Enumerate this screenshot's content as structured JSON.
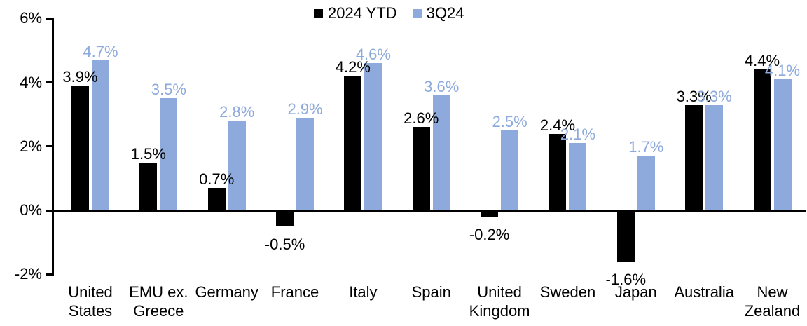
{
  "chart_data": {
    "type": "bar",
    "title": "",
    "xlabel": "",
    "ylabel": "",
    "value_suffix": "%",
    "grid": false,
    "legend_position": "top-center",
    "categories": [
      "United States",
      "EMU ex. Greece",
      "Germany",
      "France",
      "Italy",
      "Spain",
      "United Kingdom",
      "Sweden",
      "Japan",
      "Australia",
      "New Zealand"
    ],
    "series": [
      {
        "name": "2024 YTD",
        "color": "#000000",
        "values": [
          3.9,
          1.5,
          0.7,
          -0.5,
          4.2,
          2.6,
          -0.2,
          2.4,
          -1.6,
          3.3,
          4.4
        ],
        "labels": [
          "3.9%",
          "1.5%",
          "0.7%",
          "-0.5%",
          "4.2%",
          "2.6%",
          "-0.2%",
          "2.4%",
          "-1.6%",
          "3.3%",
          "4.4%"
        ]
      },
      {
        "name": "3Q24",
        "color": "#8EAADC",
        "values": [
          4.7,
          3.5,
          2.8,
          2.9,
          4.6,
          3.6,
          2.5,
          2.1,
          1.7,
          3.3,
          4.1
        ],
        "labels": [
          "4.7%",
          "3.5%",
          "2.8%",
          "2.9%",
          "4.6%",
          "3.6%",
          "2.5%",
          "2.1%",
          "1.7%",
          "3.3%",
          "4.1%"
        ]
      }
    ],
    "y_axis": {
      "min": -2,
      "max": 6,
      "tick_step": 2,
      "ticks": [
        6,
        4,
        2,
        0,
        -2
      ],
      "tick_labels": [
        "6%",
        "4%",
        "2%",
        "0%",
        "-2%"
      ]
    }
  }
}
